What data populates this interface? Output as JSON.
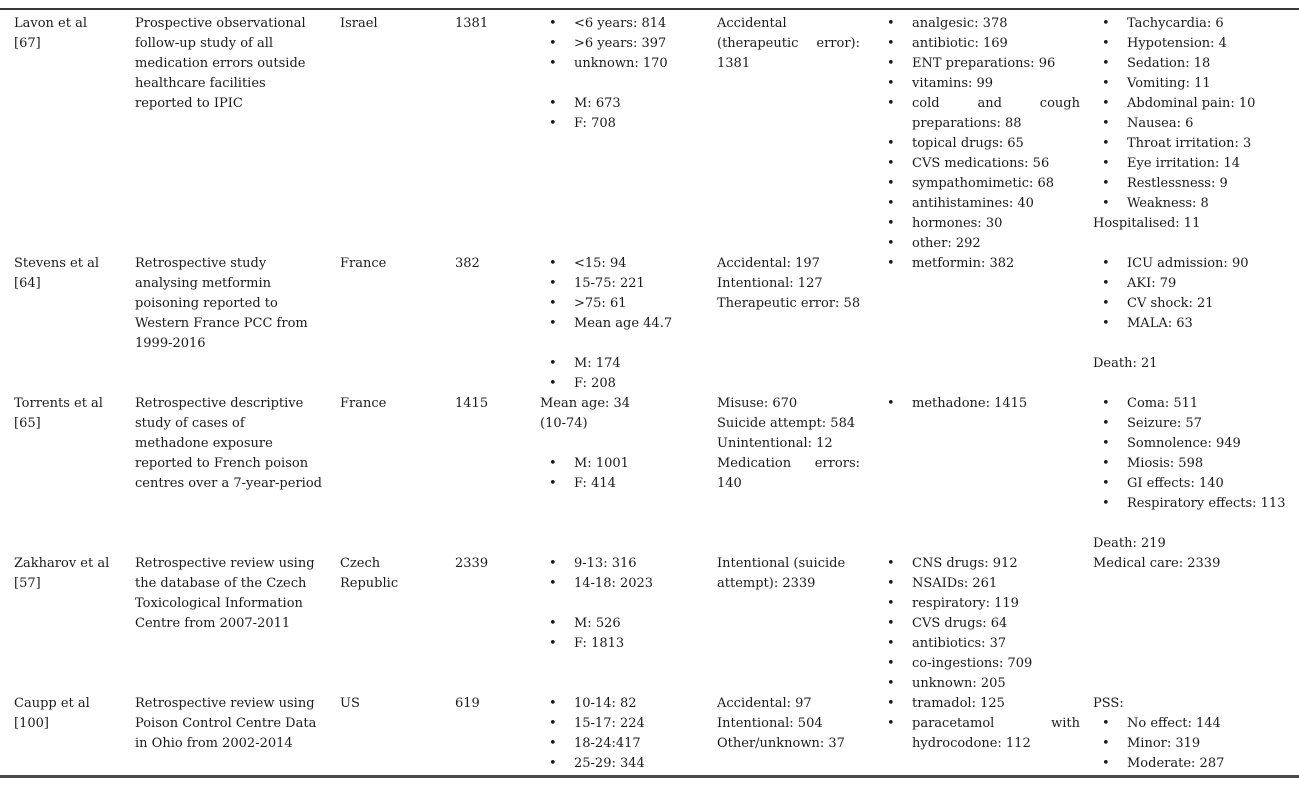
{
  "document": {
    "kind": "systematic-review-table-page",
    "background": "#ffffff",
    "text_color": "#1b1b1b",
    "rule_color": "#3a3a3a",
    "bullet_glyph": "•"
  },
  "table": {
    "rows": [
      {
        "study": {
          "name": "Lavon et al",
          "ref": "[67]"
        },
        "description": [
          {
            "lines": [
              "Prospective observational",
              "follow-up study of all",
              "medication errors outside",
              "healthcare facilities",
              "reported to IPIC"
            ]
          }
        ],
        "country": [
          {
            "lines": [
              "Israel"
            ]
          }
        ],
        "n": "1381",
        "age_sex": [
          {
            "bullet": true,
            "lines": [
              "<6 years: 814"
            ]
          },
          {
            "bullet": true,
            "lines": [
              ">6 years: 397"
            ]
          },
          {
            "bullet": true,
            "lines": [
              "unknown: 170"
            ]
          },
          {
            "gap": true
          },
          {
            "bullet": true,
            "lines": [
              "M: 673"
            ]
          },
          {
            "bullet": true,
            "lines": [
              "F: 708"
            ]
          }
        ],
        "exposure": [
          {
            "lines": [
              "Accidental",
              {
                "text": "(therapeutic error):",
                "spread": true
              },
              "1381"
            ]
          }
        ],
        "drugs": [
          {
            "bullet": true,
            "lines": [
              "analgesic: 378"
            ]
          },
          {
            "bullet": true,
            "lines": [
              "antibiotic: 169"
            ]
          },
          {
            "bullet": true,
            "lines": [
              "ENT preparations: 96"
            ]
          },
          {
            "bullet": true,
            "lines": [
              "vitamins: 99"
            ]
          },
          {
            "bullet": true,
            "lines": [
              {
                "text": "cold and cough",
                "spread": true
              },
              "preparations: 88"
            ]
          },
          {
            "bullet": true,
            "lines": [
              "topical drugs: 65"
            ]
          },
          {
            "bullet": true,
            "lines": [
              "CVS medications: 56"
            ]
          },
          {
            "bullet": true,
            "lines": [
              "sympathomimetic: 68"
            ]
          },
          {
            "bullet": true,
            "lines": [
              "antihistamines: 40"
            ]
          },
          {
            "bullet": true,
            "lines": [
              "hormones: 30"
            ]
          },
          {
            "bullet": true,
            "lines": [
              "other: 292"
            ]
          }
        ],
        "outcomes": [
          {
            "bullet": true,
            "lines": [
              "Tachycardia: 6"
            ]
          },
          {
            "bullet": true,
            "lines": [
              "Hypotension: 4"
            ]
          },
          {
            "bullet": true,
            "lines": [
              "Sedation: 18"
            ]
          },
          {
            "bullet": true,
            "lines": [
              "Vomiting: 11"
            ]
          },
          {
            "bullet": true,
            "lines": [
              "Abdominal pain: 10"
            ]
          },
          {
            "bullet": true,
            "lines": [
              "Nausea: 6"
            ]
          },
          {
            "bullet": true,
            "lines": [
              "Throat irritation: 3"
            ]
          },
          {
            "bullet": true,
            "lines": [
              "Eye irritation: 14"
            ]
          },
          {
            "bullet": true,
            "lines": [
              "Restlessness: 9"
            ]
          },
          {
            "bullet": true,
            "lines": [
              "Weakness: 8"
            ]
          },
          {
            "lines": [
              "Hospitalised: 11"
            ]
          }
        ]
      },
      {
        "study": {
          "name": "Stevens et al",
          "ref": "[64]"
        },
        "description": [
          {
            "lines": [
              "Retrospective study",
              "analysing metformin",
              "poisoning reported to",
              "Western France PCC from",
              "1999-2016"
            ]
          }
        ],
        "country": [
          {
            "lines": [
              "France"
            ]
          }
        ],
        "n": "382",
        "age_sex": [
          {
            "bullet": true,
            "lines": [
              "<15: 94"
            ]
          },
          {
            "bullet": true,
            "lines": [
              "15-75: 221"
            ]
          },
          {
            "bullet": true,
            "lines": [
              ">75: 61"
            ]
          },
          {
            "bullet": true,
            "lines": [
              "Mean age 44.7"
            ]
          },
          {
            "gap": true
          },
          {
            "bullet": true,
            "lines": [
              "M: 174"
            ]
          },
          {
            "bullet": true,
            "lines": [
              "F: 208"
            ]
          }
        ],
        "exposure": [
          {
            "lines": [
              "Accidental: 197",
              "Intentional: 127",
              "Therapeutic error: 58"
            ]
          }
        ],
        "drugs": [
          {
            "bullet": true,
            "lines": [
              "metformin: 382"
            ]
          }
        ],
        "outcomes": [
          {
            "bullet": true,
            "lines": [
              "ICU admission: 90"
            ]
          },
          {
            "bullet": true,
            "lines": [
              "AKI: 79"
            ]
          },
          {
            "bullet": true,
            "lines": [
              "CV shock: 21"
            ]
          },
          {
            "bullet": true,
            "lines": [
              "MALA: 63"
            ]
          },
          {
            "gap": true
          },
          {
            "lines": [
              "Death: 21"
            ]
          }
        ]
      },
      {
        "study": {
          "name": "Torrents et al",
          "ref": "[65]"
        },
        "description": [
          {
            "lines": [
              "Retrospective descriptive",
              "study of cases of",
              "methadone exposure",
              "reported to French poison",
              "centres over a 7-year-period"
            ]
          }
        ],
        "country": [
          {
            "lines": [
              "France"
            ]
          }
        ],
        "n": "1415",
        "age_sex": [
          {
            "lines": [
              "Mean age: 34",
              "(10-74)"
            ]
          },
          {
            "gap": true
          },
          {
            "bullet": true,
            "lines": [
              "M: 1001"
            ]
          },
          {
            "bullet": true,
            "lines": [
              "F: 414"
            ]
          }
        ],
        "exposure": [
          {
            "lines": [
              "Misuse: 670",
              "Suicide attempt: 584",
              "Unintentional: 12",
              {
                "text": "Medication errors:",
                "spread": true
              },
              "140"
            ]
          }
        ],
        "drugs": [
          {
            "bullet": true,
            "lines": [
              "methadone: 1415"
            ]
          }
        ],
        "outcomes": [
          {
            "bullet": true,
            "lines": [
              "Coma: 511"
            ]
          },
          {
            "bullet": true,
            "lines": [
              "Seizure: 57"
            ]
          },
          {
            "bullet": true,
            "lines": [
              "Somnolence: 949"
            ]
          },
          {
            "bullet": true,
            "lines": [
              "Miosis: 598"
            ]
          },
          {
            "bullet": true,
            "lines": [
              "GI effects: 140"
            ]
          },
          {
            "bullet": true,
            "lines": [
              "Respiratory effects: 113"
            ]
          },
          {
            "gap": true
          },
          {
            "lines": [
              "Death: 219"
            ]
          }
        ]
      },
      {
        "study": {
          "name": "Zakharov et al",
          "ref": "[57]"
        },
        "description": [
          {
            "lines": [
              "Retrospective review using",
              "the database of the Czech",
              "Toxicological Information",
              "Centre from 2007-2011"
            ]
          }
        ],
        "country": [
          {
            "lines": [
              "Czech",
              "Republic"
            ]
          }
        ],
        "n": "2339",
        "age_sex": [
          {
            "bullet": true,
            "lines": [
              "9-13: 316"
            ]
          },
          {
            "bullet": true,
            "lines": [
              "14-18: 2023"
            ]
          },
          {
            "gap": true
          },
          {
            "bullet": true,
            "lines": [
              "M: 526"
            ]
          },
          {
            "bullet": true,
            "lines": [
              "F: 1813"
            ]
          }
        ],
        "exposure": [
          {
            "lines": [
              "Intentional (suicide",
              "attempt): 2339"
            ]
          }
        ],
        "drugs": [
          {
            "bullet": true,
            "lines": [
              "CNS drugs: 912"
            ]
          },
          {
            "bullet": true,
            "lines": [
              "NSAIDs: 261"
            ]
          },
          {
            "bullet": true,
            "lines": [
              "respiratory: 119"
            ]
          },
          {
            "bullet": true,
            "lines": [
              "CVS drugs: 64"
            ]
          },
          {
            "bullet": true,
            "lines": [
              "antibiotics: 37"
            ]
          },
          {
            "bullet": true,
            "lines": [
              "co-ingestions: 709"
            ]
          },
          {
            "bullet": true,
            "lines": [
              "unknown: 205"
            ]
          }
        ],
        "outcomes": [
          {
            "lines": [
              "Medical care: 2339"
            ]
          }
        ]
      },
      {
        "study": {
          "name": "Caupp et al",
          "ref": "[100]"
        },
        "description": [
          {
            "lines": [
              "Retrospective review using",
              "Poison Control Centre Data",
              "in Ohio from 2002-2014"
            ]
          }
        ],
        "country": [
          {
            "lines": [
              "US"
            ]
          }
        ],
        "n": "619",
        "age_sex": [
          {
            "bullet": true,
            "lines": [
              "10-14: 82"
            ]
          },
          {
            "bullet": true,
            "lines": [
              "15-17: 224"
            ]
          },
          {
            "bullet": true,
            "lines": [
              "18-24:417"
            ]
          },
          {
            "bullet": true,
            "lines": [
              "25-29: 344"
            ]
          }
        ],
        "exposure": [
          {
            "lines": [
              "Accidental: 97",
              "Intentional: 504",
              "Other/unknown: 37"
            ]
          }
        ],
        "drugs": [
          {
            "bullet": true,
            "lines": [
              "tramadol: 125"
            ]
          },
          {
            "bullet": true,
            "lines": [
              {
                "text": "paracetamol with",
                "spread": true
              },
              "hydrocodone: 112"
            ]
          }
        ],
        "outcomes": [
          {
            "lines": [
              "PSS:"
            ]
          },
          {
            "bullet": true,
            "lines": [
              "No effect: 144"
            ]
          },
          {
            "bullet": true,
            "lines": [
              "Minor: 319"
            ]
          },
          {
            "bullet": true,
            "lines": [
              "Moderate: 287"
            ]
          }
        ]
      }
    ]
  }
}
